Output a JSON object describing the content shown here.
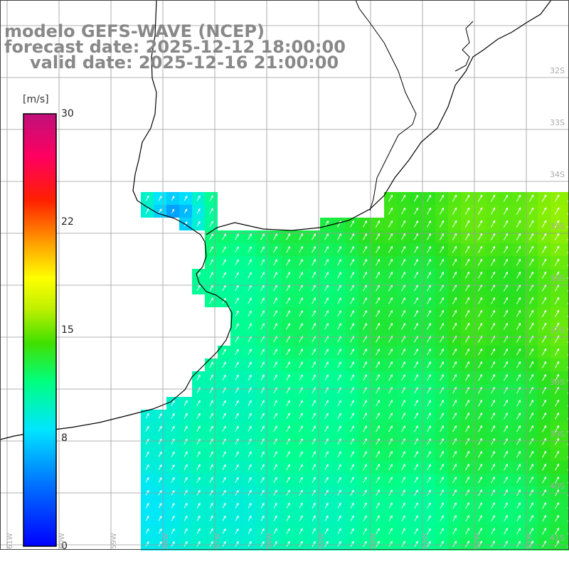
{
  "header": {
    "model_line": "modelo GEFS-WAVE (NCEP)",
    "forecast_line": "forecast date: 2025-12-12 18:00:00",
    "valid_line": "valid date: 2025-12-16 21:00:00"
  },
  "colorbar": {
    "unit": "[m/s]",
    "ticks": [
      "30",
      "22",
      "15",
      "8",
      "0"
    ],
    "range": [
      0,
      30
    ]
  },
  "lat_labels": [
    "32S",
    "33S",
    "34S",
    "35S",
    "36S",
    "37S",
    "38S",
    "39S",
    "40S",
    "41S"
  ],
  "lon_labels": [
    "61W",
    "60W",
    "59W",
    "58W",
    "57W",
    "56W",
    "55W",
    "54W",
    "53W",
    "52W",
    "51W"
  ],
  "map": {
    "field": "wind speed",
    "units": "m/s",
    "land_color": "#ffffff",
    "grid_color": "#9a9a9a",
    "coast_color": "#000000"
  }
}
